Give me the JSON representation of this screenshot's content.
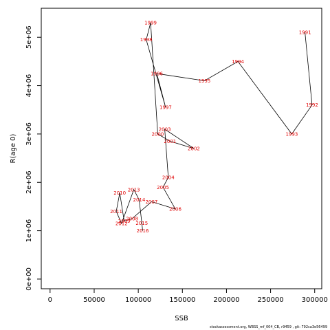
{
  "chart_data": {
    "type": "line",
    "xlabel": "SSB",
    "ylabel": "R(age 0)",
    "xlim": [
      -10000,
      308000
    ],
    "ylim": [
      -200000,
      5600000
    ],
    "xticks": [
      0,
      50000,
      100000,
      150000,
      200000,
      250000,
      300000
    ],
    "xtick_labels": [
      "0",
      "50000",
      "100000",
      "150000",
      "200000",
      "250000",
      "300000"
    ],
    "yticks": [
      0,
      1000000,
      2000000,
      3000000,
      4000000,
      5000000
    ],
    "ytick_labels": [
      "0e+00",
      "1e+06",
      "2e+06",
      "3e+06",
      "4e+06",
      "5e+06"
    ],
    "grid": false,
    "label_color": "#e00000",
    "line_color": "#000000",
    "points": [
      {
        "year": "1991",
        "x": 289000,
        "y": 5100000
      },
      {
        "year": "1992",
        "x": 297000,
        "y": 3600000
      },
      {
        "year": "1993",
        "x": 274000,
        "y": 3000000
      },
      {
        "year": "1994",
        "x": 213000,
        "y": 4500000
      },
      {
        "year": "1995",
        "x": 175000,
        "y": 4100000
      },
      {
        "year": "1996",
        "x": 121000,
        "y": 4250000
      },
      {
        "year": "1997",
        "x": 131000,
        "y": 3550000
      },
      {
        "year": "1998",
        "x": 109000,
        "y": 4950000
      },
      {
        "year": "1999",
        "x": 114000,
        "y": 5300000
      },
      {
        "year": "2000",
        "x": 122000,
        "y": 3000000
      },
      {
        "year": "2001",
        "x": 136000,
        "y": 2850000
      },
      {
        "year": "2002",
        "x": 163000,
        "y": 2700000
      },
      {
        "year": "2003",
        "x": 130000,
        "y": 3100000
      },
      {
        "year": "2004",
        "x": 134000,
        "y": 2100000
      },
      {
        "year": "2005",
        "x": 128000,
        "y": 1900000
      },
      {
        "year": "2006",
        "x": 142000,
        "y": 1450000
      },
      {
        "year": "2007",
        "x": 115000,
        "y": 1600000
      },
      {
        "year": "2008",
        "x": 93000,
        "y": 1250000
      },
      {
        "year": "2009",
        "x": 84000,
        "y": 1200000
      },
      {
        "year": "2010",
        "x": 79000,
        "y": 1780000
      },
      {
        "year": "2011",
        "x": 75000,
        "y": 1400000
      },
      {
        "year": "2012",
        "x": 81000,
        "y": 1150000
      },
      {
        "year": "2013",
        "x": 95000,
        "y": 1850000
      },
      {
        "year": "2014",
        "x": 101000,
        "y": 1640000
      },
      {
        "year": "2015",
        "x": 104000,
        "y": 1160000
      },
      {
        "year": "2016",
        "x": 105000,
        "y": 1000000
      }
    ]
  },
  "footer": {
    "text": "stockassessment.org, WBSS_mf_004_CB, r9459 , git: 792ca3e56499"
  }
}
